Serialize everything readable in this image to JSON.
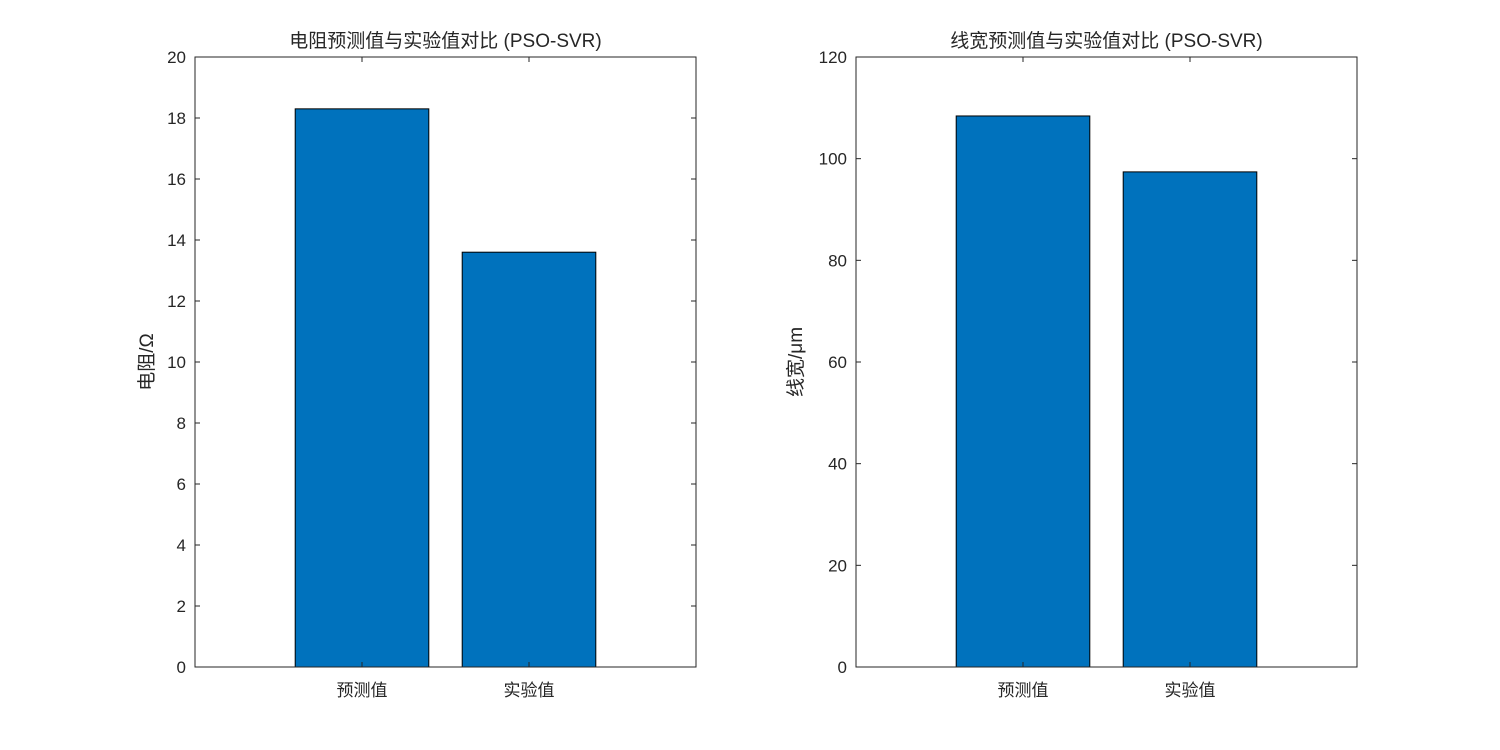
{
  "chart_data": [
    {
      "type": "bar",
      "title": "电阻预测值与实验值对比 (PSO-SVR)",
      "xlabel": "",
      "ylabel": "电阻/Ω",
      "categories": [
        "预测值",
        "实验值"
      ],
      "values": [
        18.3,
        13.6
      ],
      "ylim": [
        0,
        20
      ],
      "yticks": [
        "0",
        "2",
        "4",
        "6",
        "8",
        "10",
        "12",
        "14",
        "16",
        "18",
        "20"
      ],
      "bar_color": "#0072BD",
      "grid": false
    },
    {
      "type": "bar",
      "title": "线宽预测值与实验值对比 (PSO-SVR)",
      "xlabel": "",
      "ylabel": "线宽/μm",
      "categories": [
        "预测值",
        "实验值"
      ],
      "values": [
        108.4,
        97.4
      ],
      "ylim": [
        0,
        120
      ],
      "yticks": [
        "0",
        "20",
        "40",
        "60",
        "80",
        "100",
        "120"
      ],
      "bar_color": "#0072BD",
      "grid": false
    }
  ]
}
